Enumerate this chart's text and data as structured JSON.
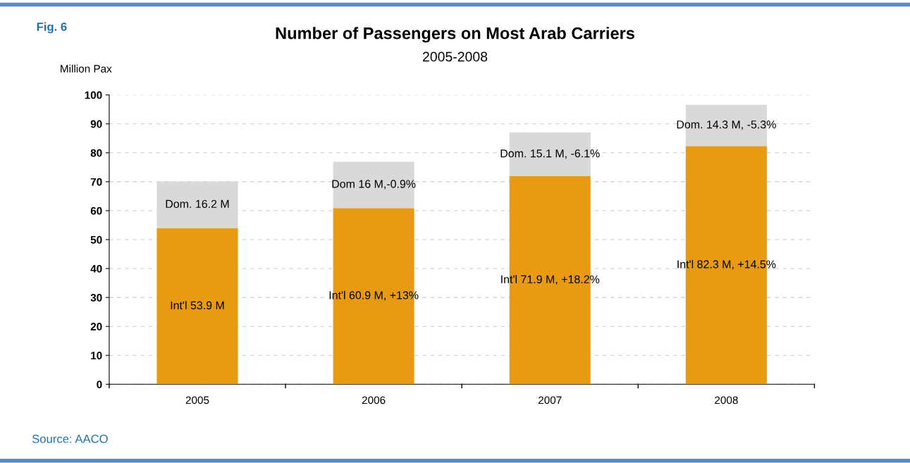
{
  "chart_data": {
    "type": "bar",
    "title": "Number of Passengers on Most Arab Carriers",
    "subtitle": "2005-2008",
    "ylabel": "Million Pax",
    "categories": [
      "2005",
      "2006",
      "2007",
      "2008"
    ],
    "stacked": true,
    "series": [
      {
        "color": "#e89b12",
        "values": [
          53.9,
          60.9,
          71.9,
          82.3
        ],
        "value_labels": [
          "Int'l 53.9 M",
          "Int'l 60.9 M, +13%",
          "Int'l 71.9 M, +18.2%",
          "Int'l 82.3 M, +14.5%"
        ]
      },
      {
        "color": "#d9d9d9",
        "values": [
          16.2,
          16,
          15.1,
          14.3
        ],
        "value_labels": [
          "Dom. 16.2 M",
          "Dom 16 M,-0.9%",
          "Dom. 15.1 M, -6.1%",
          "Dom. 14.3 M, -5.3%"
        ]
      }
    ],
    "ylim": [
      0,
      100
    ],
    "yticks": [
      0,
      10,
      20,
      30,
      40,
      50,
      60,
      70,
      80,
      90,
      100
    ],
    "grid": "y",
    "annotations": [
      "Fig. 6",
      "Source: AACO"
    ]
  }
}
